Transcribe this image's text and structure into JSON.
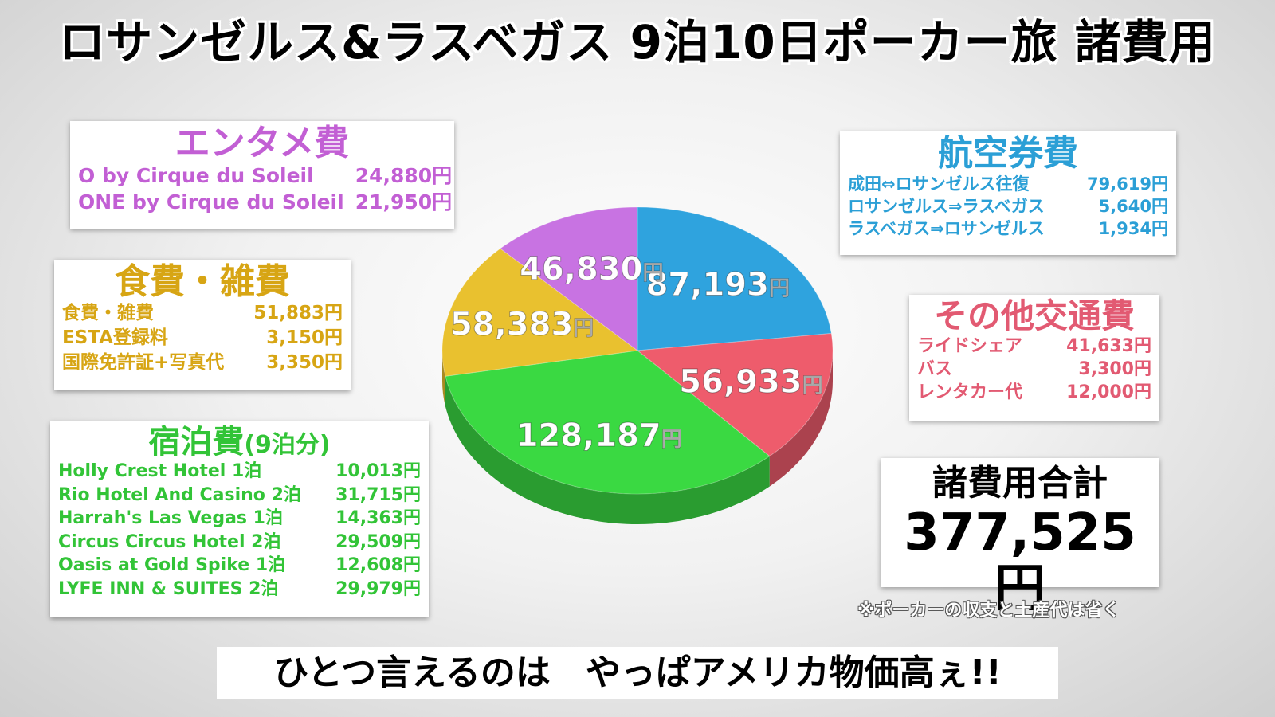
{
  "title": "ロサンゼルス&ラスベガス 9泊10日ポーカー旅 諸費用",
  "colors": {
    "entertainment": "#c25fd4",
    "food": "#d7a514",
    "lodging": "#32c437",
    "airfare": "#2b9fd6",
    "transport": "#e25a72"
  },
  "entertainment": {
    "title": "エンタメ費",
    "items": [
      {
        "label": "O by Cirque du Soleil",
        "amount": "24,880円"
      },
      {
        "label": "ONE by Cirque du Soleil",
        "amount": "21,950円"
      }
    ]
  },
  "food": {
    "title": "食費・雑費",
    "items": [
      {
        "label": "食費・雑費",
        "amount": "51,883円"
      },
      {
        "label": "ESTA登録料",
        "amount": "3,150円"
      },
      {
        "label": "国際免許証+写真代",
        "amount": "3,350円"
      }
    ]
  },
  "lodging": {
    "title": "宿泊費",
    "subtitle": "(9泊分)",
    "items": [
      {
        "label": "Holly Crest Hotel 1泊",
        "amount": "10,013円"
      },
      {
        "label": "Rio Hotel And Casino 2泊",
        "amount": "31,715円"
      },
      {
        "label": "Harrah's Las Vegas 1泊",
        "amount": "14,363円"
      },
      {
        "label": "Circus Circus Hotel 2泊",
        "amount": "29,509円"
      },
      {
        "label": "Oasis at Gold Spike 1泊",
        "amount": "12,608円"
      },
      {
        "label": "LYFE INN & SUITES 2泊",
        "amount": "29,979円"
      }
    ]
  },
  "airfare": {
    "title": "航空券費",
    "items": [
      {
        "label": "成田⇔ロサンゼルス往復",
        "amount": "79,619円"
      },
      {
        "label": "ロサンゼルス⇒ラスベガス",
        "amount": "5,640円"
      },
      {
        "label": "ラスベガス⇒ロサンゼルス",
        "amount": "1,934円"
      }
    ]
  },
  "transport": {
    "title": "その他交通費",
    "items": [
      {
        "label": "ライドシェア",
        "amount": "41,633円"
      },
      {
        "label": "バス",
        "amount": "3,300円"
      },
      {
        "label": "レンタカー代",
        "amount": "12,000円"
      }
    ]
  },
  "total": {
    "label": "諸費用合計",
    "value": "377,525円"
  },
  "note": "※ポーカーの収支と土産代は省く",
  "caption": "ひとつ言えるのは　やっぱアメリカ物価高ぇ!!",
  "chart_data": {
    "type": "pie",
    "unit": "円",
    "slices": [
      {
        "key": "airfare",
        "value": 87193,
        "label": "87,193",
        "color": "#2fa3de"
      },
      {
        "key": "transport",
        "value": 56933,
        "label": "56,933",
        "color": "#ee5c6c"
      },
      {
        "key": "lodging",
        "value": 128187,
        "label": "128,187",
        "color": "#3ad942"
      },
      {
        "key": "food",
        "value": 58383,
        "label": "58,383",
        "color": "#e9c12f"
      },
      {
        "key": "entertainment",
        "value": 46830,
        "label": "46,830",
        "color": "#c873e2"
      }
    ]
  }
}
